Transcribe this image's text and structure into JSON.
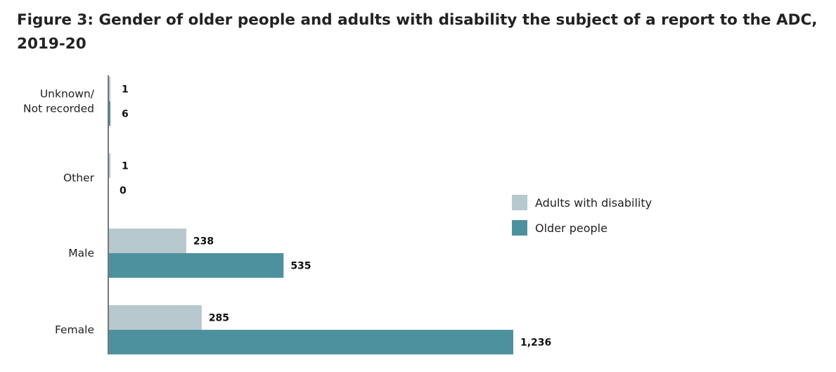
{
  "chart_data": {
    "type": "bar",
    "orientation": "horizontal",
    "title": "Figure 3: Gender of older people and adults with disability the subject of a report to the ADC, 2019-20",
    "categories": [
      [
        "Unknown/",
        "Not recorded"
      ],
      [
        "Other"
      ],
      [
        "Male"
      ],
      [
        "Female"
      ]
    ],
    "series": [
      {
        "name": "Adults with disability",
        "color": "#b7c8cf",
        "values": [
          1,
          1,
          238,
          285
        ],
        "labels": [
          "1",
          "1",
          "238",
          "285"
        ]
      },
      {
        "name": "Older people",
        "color": "#4e919e",
        "values": [
          6,
          0,
          535,
          1236
        ],
        "labels": [
          "6",
          "0",
          "535",
          "1,236"
        ]
      }
    ],
    "xlim": [
      0,
      1236
    ],
    "grid": false,
    "legend": "right"
  }
}
